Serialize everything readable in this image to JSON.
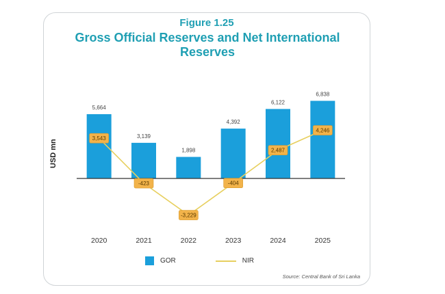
{
  "chart_data": {
    "type": "bar",
    "figure_label": "Figure 1.25",
    "title": "Gross Official Reserves and Net International Reserves",
    "ylabel": "USD mn",
    "xlabel": "",
    "categories": [
      "2020",
      "2021",
      "2022",
      "2023",
      "2024",
      "2025"
    ],
    "ylim": [
      -4000,
      8000
    ],
    "grid": false,
    "legend_position": "bottom",
    "series": [
      {
        "name": "GOR",
        "kind": "bar",
        "color": "#1b9fdb",
        "values": [
          5664,
          3139,
          1898,
          4392,
          6122,
          6838
        ],
        "labels": [
          "5,664",
          "3,139",
          "1,898",
          "4,392",
          "6,122",
          "6,838"
        ]
      },
      {
        "name": "NIR",
        "kind": "line",
        "color": "#e7cf5e",
        "label_bg": "#f2b34a",
        "values": [
          3543,
          -423,
          -3229,
          -404,
          2487,
          4246
        ],
        "labels": [
          "3,543",
          "-423",
          "-3,229",
          "-404",
          "2,487",
          "4,246"
        ]
      }
    ],
    "source": "Source: Central Bank of Sri Lanka"
  }
}
